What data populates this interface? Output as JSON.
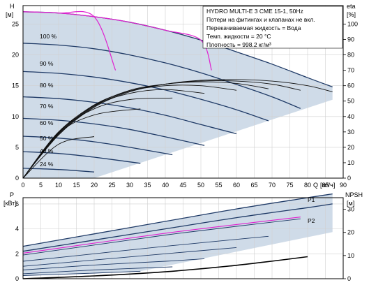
{
  "chart_data": [
    {
      "type": "line",
      "panel": "head-efficiency",
      "ylabel_left": "H",
      "ylabel_left_unit": "[м]",
      "ylabel_right": "eta",
      "ylabel_right_unit": "[%]",
      "xlabel": "Q",
      "xlabel_unit": "[м³/ч]",
      "xlim": [
        0,
        90
      ],
      "ylim_left": [
        0,
        28
      ],
      "ylim_right": [
        0,
        112
      ],
      "xticks": [
        0,
        5,
        10,
        15,
        20,
        25,
        30,
        35,
        40,
        45,
        50,
        55,
        60,
        65,
        70,
        75,
        80,
        85,
        90
      ],
      "yticks_left": [
        0,
        5,
        10,
        15,
        20,
        25
      ],
      "yticks_right": [
        0,
        10,
        20,
        30,
        40,
        50,
        60,
        70,
        80,
        90,
        100
      ],
      "grid": true,
      "info": [
        "HYDRO MULTI-E 3 CME 15-1, 50Hz",
        "Потери на фитингах и клапанах не вкл.",
        "Перекачиваемая жидкость = Вода",
        "Темп. жидкости = 20 °C",
        "Плотность = 998.2 кг/м³"
      ],
      "speed_labels": [
        "100 %",
        "90 %",
        "80 %",
        "70 %",
        "60 %",
        "50 %",
        "40 %",
        "24 %"
      ],
      "head_curves": [
        {
          "name": "100 %",
          "x": [
            0,
            10,
            20,
            30,
            40,
            50,
            60,
            70,
            80,
            87
          ],
          "y": [
            27,
            26.8,
            26.2,
            25.3,
            24.0,
            22.4,
            20.5,
            18.5,
            16.3,
            14.8
          ]
        },
        {
          "name": "90 %",
          "x": [
            0,
            10,
            20,
            30,
            40,
            50,
            60,
            70,
            78
          ],
          "y": [
            21.9,
            21.6,
            21.0,
            20.0,
            18.7,
            17.1,
            15.2,
            13.2,
            11.3
          ]
        },
        {
          "name": "80 %",
          "x": [
            0,
            10,
            20,
            30,
            40,
            50,
            60,
            69
          ],
          "y": [
            17.3,
            17.0,
            16.4,
            15.5,
            14.3,
            12.8,
            11.1,
            9.3
          ]
        },
        {
          "name": "70 %",
          "x": [
            0,
            10,
            20,
            30,
            40,
            50,
            60
          ],
          "y": [
            13.2,
            12.9,
            12.3,
            11.4,
            10.2,
            8.7,
            7.2
          ]
        },
        {
          "name": "60 %",
          "x": [
            0,
            10,
            20,
            30,
            40,
            51
          ],
          "y": [
            9.7,
            9.4,
            8.8,
            7.9,
            6.7,
            5.3
          ]
        },
        {
          "name": "50 %",
          "x": [
            0,
            10,
            20,
            30,
            42
          ],
          "y": [
            6.8,
            6.5,
            5.9,
            5.0,
            3.8
          ]
        },
        {
          "name": "40 %",
          "x": [
            0,
            10,
            20,
            33
          ],
          "y": [
            4.3,
            4.0,
            3.4,
            2.4
          ]
        },
        {
          "name": "24 %",
          "x": [
            0,
            10,
            20
          ],
          "y": [
            1.6,
            1.4,
            1.0
          ]
        }
      ],
      "eta_curves": [
        {
          "name": "100 %",
          "x": [
            0,
            10,
            20,
            30,
            40,
            50,
            60,
            70,
            80,
            87
          ],
          "y": [
            0,
            28,
            46,
            56,
            61,
            63.5,
            64,
            63,
            60,
            56
          ]
        },
        {
          "name": "90 %",
          "x": [
            0,
            10,
            20,
            30,
            40,
            50,
            60,
            70,
            78
          ],
          "y": [
            0,
            28.5,
            46.5,
            56.5,
            61,
            63,
            63,
            61,
            57
          ]
        },
        {
          "name": "80 %",
          "x": [
            0,
            10,
            20,
            30,
            40,
            50,
            60,
            69
          ],
          "y": [
            0,
            29,
            47,
            57,
            61,
            62.5,
            61.5,
            58
          ]
        },
        {
          "name": "70 %",
          "x": [
            0,
            10,
            20,
            30,
            40,
            50,
            60
          ],
          "y": [
            0,
            29.5,
            47.5,
            56.5,
            60,
            60,
            57
          ]
        },
        {
          "name": "60 %",
          "x": [
            0,
            10,
            20,
            30,
            40,
            51
          ],
          "y": [
            0,
            30,
            47,
            55,
            57.5,
            55
          ]
        },
        {
          "name": "50 %",
          "x": [
            0,
            10,
            20,
            30,
            42
          ],
          "y": [
            0,
            30,
            45,
            51,
            52
          ]
        },
        {
          "name": "40 %",
          "x": [
            0,
            10,
            20,
            33
          ],
          "y": [
            0,
            29,
            41,
            45
          ]
        },
        {
          "name": "24 %",
          "x": [
            0,
            10,
            20
          ],
          "y": [
            0,
            22,
            27
          ]
        }
      ],
      "highlight_curves": [
        {
          "x": [
            0,
            10,
            20,
            30,
            40,
            50,
            53
          ],
          "y": [
            27,
            26.8,
            26.2,
            25.3,
            24.0,
            22.4,
            17.5
          ]
        },
        {
          "x": [
            0,
            10,
            20,
            26
          ],
          "y": [
            27,
            26.8,
            26.2,
            17.5
          ]
        }
      ]
    },
    {
      "type": "line",
      "panel": "power-npsh",
      "ylabel_left": "P",
      "ylabel_left_unit": "[кВт]",
      "ylabel_right": "NPSH",
      "ylabel_right_unit": "[м]",
      "xlim": [
        0,
        90
      ],
      "ylim_left": [
        0,
        6.5
      ],
      "ylim_right": [
        0,
        35
      ],
      "yticks_left": [
        0,
        2,
        4,
        6
      ],
      "yticks_right": [
        0,
        10,
        20,
        30
      ],
      "grid": true,
      "series_labels": [
        "P1",
        "P2"
      ],
      "power_curves": [
        {
          "name": "P1",
          "x": [
            0,
            20,
            40,
            60,
            80,
            87
          ],
          "y": [
            2.6,
            3.6,
            4.6,
            5.6,
            6.5,
            6.8
          ]
        },
        {
          "name": "P2",
          "x": [
            0,
            20,
            40,
            60,
            80,
            87
          ],
          "y": [
            2.2,
            3.1,
            4.0,
            4.9,
            5.7,
            6.0
          ]
        },
        {
          "name": "",
          "x": [
            0,
            20,
            40,
            60,
            78
          ],
          "y": [
            1.9,
            2.7,
            3.5,
            4.2,
            4.8
          ]
        },
        {
          "name": "",
          "x": [
            0,
            20,
            40,
            69
          ],
          "y": [
            1.4,
            2.0,
            2.6,
            3.4
          ]
        },
        {
          "name": "",
          "x": [
            0,
            20,
            40,
            60
          ],
          "y": [
            1.0,
            1.5,
            2.0,
            2.5
          ]
        },
        {
          "name": "",
          "x": [
            0,
            20,
            40,
            51
          ],
          "y": [
            0.7,
            1.1,
            1.4,
            1.6
          ]
        },
        {
          "name": "",
          "x": [
            0,
            20,
            42
          ],
          "y": [
            0.4,
            0.7,
            0.95
          ]
        },
        {
          "name": "",
          "x": [
            0,
            20,
            33
          ],
          "y": [
            0.25,
            0.45,
            0.6
          ]
        }
      ],
      "npsh_curve": {
        "x": [
          0,
          20,
          40,
          60,
          80
        ],
        "y": [
          0,
          1.2,
          3.0,
          5.8,
          9.5
        ]
      }
    }
  ]
}
